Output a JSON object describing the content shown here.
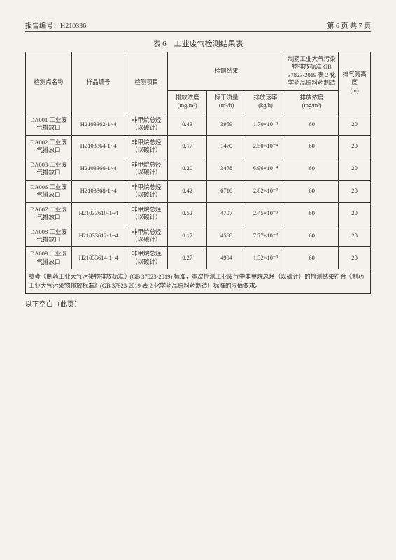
{
  "header": {
    "report_label": "报告编号：H210336",
    "page_label": "第 6 页 共 7 页"
  },
  "table": {
    "title": "表 6　工业废气检测结果表",
    "columns": {
      "point": "检测点名称",
      "sample": "样品编号",
      "item": "检测项目",
      "result_group": "检测结果",
      "conc": "排放浓度",
      "conc_unit": "(mg/m³)",
      "flow": "标干流量",
      "flow_unit": "(m³/h)",
      "rate": "排放速率",
      "rate_unit": "(kg/h)",
      "std_group": "制药工业大气污染物排放标准 GB 37823-2019 表 2 化学药品原料药制造",
      "std_conc": "排放浓度",
      "std_conc_unit": "(mg/m³)",
      "stack": "排气筒高度",
      "stack_unit": "(m)"
    },
    "rows": [
      {
        "point": "DA001 工业废气排放口",
        "sample": "H2103362-1~4",
        "item": "非甲烷总烃（以碳计）",
        "conc": "0.43",
        "flow": "3959",
        "rate": "1.70×10⁻³",
        "std": "60",
        "stack": "20"
      },
      {
        "point": "DA002 工业废气排放口",
        "sample": "H2103364-1~4",
        "item": "非甲烷总烃（以碳计）",
        "conc": "0.17",
        "flow": "1470",
        "rate": "2.50×10⁻⁴",
        "std": "60",
        "stack": "20"
      },
      {
        "point": "DA003 工业废气排放口",
        "sample": "H2103366-1~4",
        "item": "非甲烷总烃（以碳计）",
        "conc": "0.20",
        "flow": "3478",
        "rate": "6.96×10⁻⁴",
        "std": "60",
        "stack": "20"
      },
      {
        "point": "DA006 工业废气排放口",
        "sample": "H2103368-1~4",
        "item": "非甲烷总烃（以碳计）",
        "conc": "0.42",
        "flow": "6716",
        "rate": "2.82×10⁻³",
        "std": "60",
        "stack": "20"
      },
      {
        "point": "DA007 工业废气排放口",
        "sample": "H21033610-1~4",
        "item": "非甲烷总烃（以碳计）",
        "conc": "0.52",
        "flow": "4707",
        "rate": "2.45×10⁻³",
        "std": "60",
        "stack": "20"
      },
      {
        "point": "DA008 工业废气排放口",
        "sample": "H21033612-1~4",
        "item": "非甲烷总烃（以碳计）",
        "conc": "0.17",
        "flow": "4568",
        "rate": "7.77×10⁻⁴",
        "std": "60",
        "stack": "20"
      },
      {
        "point": "DA009 工业废气排放口",
        "sample": "H21033614-1~4",
        "item": "非甲烷总烃（以碳计）",
        "conc": "0.27",
        "flow": "4904",
        "rate": "1.32×10⁻³",
        "std": "60",
        "stack": "20"
      }
    ],
    "note": "参考《制药工业大气污染物排放标准》(GB 37823-2019) 标准，本次检测工业废气中非甲烷总烃（以碳计）的检测结果符合《制药工业大气污染物排放标准》(GB 37823-2019 表 2 化学药品原料药制造）标准的限值要求。"
  },
  "blank_note": "以下空白（此页）",
  "style": {
    "page_bg": "#f4f2ed",
    "border_color": "#333",
    "font_family": "SimSun",
    "base_font_size": 9,
    "col_widths_pct": [
      13,
      15,
      12,
      11,
      11,
      11,
      14,
      9
    ]
  }
}
